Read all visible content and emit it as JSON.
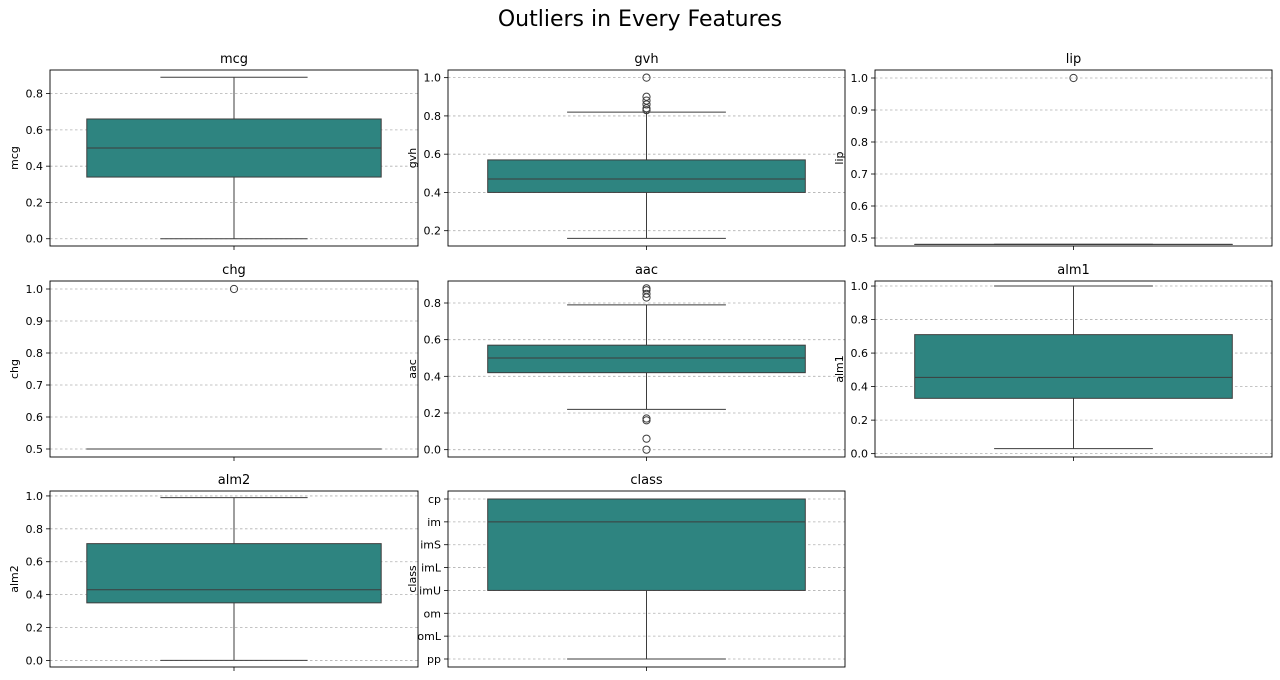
{
  "figure": {
    "title": "Outliers in Every Features",
    "box_color": "#2e8480"
  },
  "chart_data": [
    {
      "type": "box",
      "title": "mcg",
      "ylabel": "mcg",
      "ylim": [
        -0.04,
        0.93
      ],
      "yticks": [
        0.0,
        0.2,
        0.4,
        0.6,
        0.8
      ],
      "ytick_labels": [
        "0.0",
        "0.2",
        "0.4",
        "0.6",
        "0.8"
      ],
      "grid": true,
      "box": {
        "q1": 0.34,
        "median": 0.5,
        "q3": 0.66,
        "whisker_low": 0.0,
        "whisker_high": 0.89,
        "outliers": []
      }
    },
    {
      "type": "box",
      "title": "gvh",
      "ylabel": "gvh",
      "ylim": [
        0.12,
        1.04
      ],
      "yticks": [
        0.2,
        0.4,
        0.6,
        0.8,
        1.0
      ],
      "ytick_labels": [
        "0.2",
        "0.4",
        "0.6",
        "0.8",
        "1.0"
      ],
      "grid": true,
      "box": {
        "q1": 0.4,
        "median": 0.47,
        "q3": 0.57,
        "whisker_low": 0.16,
        "whisker_high": 0.82,
        "outliers": [
          0.83,
          0.84,
          0.86,
          0.88,
          0.9,
          1.0
        ]
      }
    },
    {
      "type": "box",
      "title": "lip",
      "ylabel": "lip",
      "ylim": [
        0.475,
        1.025
      ],
      "yticks": [
        0.5,
        0.6,
        0.7,
        0.8,
        0.9,
        1.0
      ],
      "ytick_labels": [
        "0.5",
        "0.6",
        "0.7",
        "0.8",
        "0.9",
        "1.0"
      ],
      "grid": true,
      "box": {
        "q1": 0.48,
        "median": 0.48,
        "q3": 0.48,
        "whisker_low": 0.48,
        "whisker_high": 0.48,
        "outliers": [
          1.0
        ]
      }
    },
    {
      "type": "box",
      "title": "chg",
      "ylabel": "chg",
      "ylim": [
        0.475,
        1.025
      ],
      "yticks": [
        0.5,
        0.6,
        0.7,
        0.8,
        0.9,
        1.0
      ],
      "ytick_labels": [
        "0.5",
        "0.6",
        "0.7",
        "0.8",
        "0.9",
        "1.0"
      ],
      "grid": true,
      "box": {
        "q1": 0.5,
        "median": 0.5,
        "q3": 0.5,
        "whisker_low": 0.5,
        "whisker_high": 0.5,
        "outliers": [
          1.0
        ]
      }
    },
    {
      "type": "box",
      "title": "aac",
      "ylabel": "aac",
      "ylim": [
        -0.04,
        0.92
      ],
      "yticks": [
        0.0,
        0.2,
        0.4,
        0.6,
        0.8
      ],
      "ytick_labels": [
        "0.0",
        "0.2",
        "0.4",
        "0.6",
        "0.8"
      ],
      "grid": true,
      "box": {
        "q1": 0.42,
        "median": 0.5,
        "q3": 0.57,
        "whisker_low": 0.22,
        "whisker_high": 0.79,
        "outliers": [
          0.83,
          0.85,
          0.87,
          0.88,
          0.17,
          0.16,
          0.06,
          0.0
        ]
      }
    },
    {
      "type": "box",
      "title": "alm1",
      "ylabel": "alm1",
      "ylim": [
        -0.02,
        1.03
      ],
      "yticks": [
        0.0,
        0.2,
        0.4,
        0.6,
        0.8,
        1.0
      ],
      "ytick_labels": [
        "0.0",
        "0.2",
        "0.4",
        "0.6",
        "0.8",
        "1.0"
      ],
      "grid": true,
      "box": {
        "q1": 0.33,
        "median": 0.455,
        "q3": 0.71,
        "whisker_low": 0.03,
        "whisker_high": 1.0,
        "outliers": []
      }
    },
    {
      "type": "box",
      "title": "alm2",
      "ylabel": "alm2",
      "ylim": [
        -0.04,
        1.03
      ],
      "yticks": [
        0.0,
        0.2,
        0.4,
        0.6,
        0.8,
        1.0
      ],
      "ytick_labels": [
        "0.0",
        "0.2",
        "0.4",
        "0.6",
        "0.8",
        "1.0"
      ],
      "grid": true,
      "box": {
        "q1": 0.35,
        "median": 0.43,
        "q3": 0.71,
        "whisker_low": 0.0,
        "whisker_high": 0.99,
        "outliers": []
      }
    },
    {
      "type": "box",
      "title": "class",
      "ylabel": "class",
      "categorical": true,
      "categories": [
        "cp",
        "im",
        "imS",
        "imL",
        "imU",
        "om",
        "omL",
        "pp"
      ],
      "ylim": [
        -0.35,
        7.35
      ],
      "grid": true,
      "box": {
        "q1": 0,
        "median": 1,
        "q3": 4,
        "whisker_low": 0,
        "whisker_high": 7,
        "outliers": []
      }
    }
  ]
}
